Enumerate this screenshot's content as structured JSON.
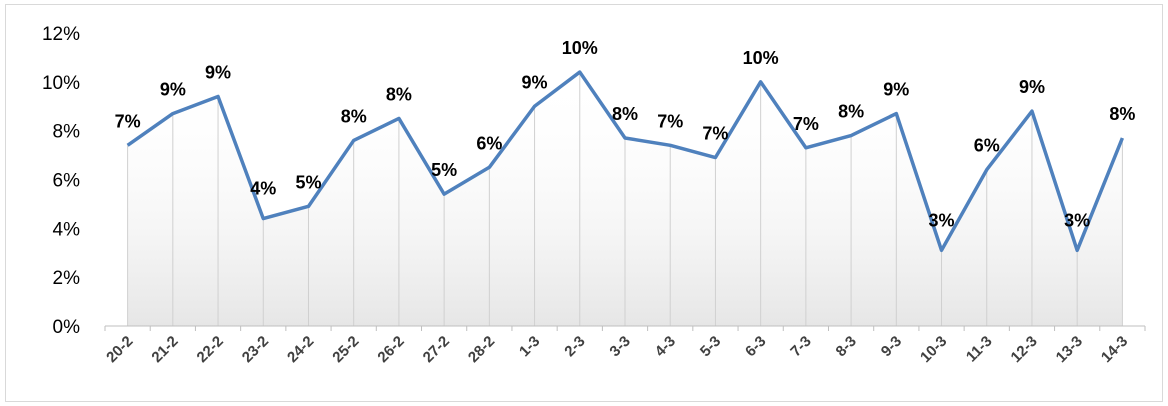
{
  "chart_data": {
    "type": "line",
    "title": "",
    "xlabel": "",
    "ylabel": "",
    "ylim": [
      0,
      12
    ],
    "yticks": [
      "0%",
      "2%",
      "4%",
      "6%",
      "8%",
      "10%",
      "12%"
    ],
    "grid": "vertical drop lines",
    "legend": "none",
    "line_color": "#4f81bd",
    "categories": [
      "20-2",
      "21-2",
      "22-2",
      "23-2",
      "24-2",
      "25-2",
      "26-2",
      "27-2",
      "28-2",
      "1-3",
      "2-3",
      "3-3",
      "4-3",
      "5-3",
      "6-3",
      "7-3",
      "8-3",
      "9-3",
      "10-3",
      "11-3",
      "12-3",
      "13-3",
      "14-3"
    ],
    "values": [
      7.4,
      8.7,
      9.4,
      4.4,
      4.9,
      7.6,
      8.5,
      5.4,
      6.5,
      9.0,
      10.4,
      7.7,
      7.4,
      6.9,
      10.0,
      7.3,
      7.8,
      8.7,
      3.1,
      6.4,
      8.8,
      3.1,
      7.7
    ],
    "data_labels": [
      "7%",
      "9%",
      "9%",
      "4%",
      "5%",
      "8%",
      "8%",
      "5%",
      "6%",
      "9%",
      "10%",
      "8%",
      "7%",
      "7%",
      "10%",
      "7%",
      "8%",
      "9%",
      "3%",
      "6%",
      "9%",
      "3%",
      "8%"
    ]
  }
}
